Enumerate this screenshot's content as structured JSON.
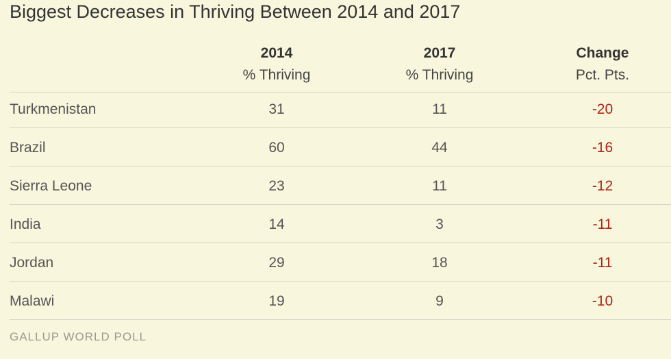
{
  "colors": {
    "background": "#f8f6dc",
    "text": "#333333",
    "negative": "#b22418",
    "rule": "#d9d6c4",
    "source": "#9b9b8c"
  },
  "chart_data": {
    "type": "table",
    "title": "Biggest Decreases in Thriving Between 2014 and 2017",
    "columns": [
      {
        "top": "",
        "sub": ""
      },
      {
        "top": "2014",
        "sub": "% Thriving"
      },
      {
        "top": "2017",
        "sub": "% Thriving"
      },
      {
        "top": "Change",
        "sub": "Pct. Pts."
      }
    ],
    "rows": [
      {
        "country": "Turkmenistan",
        "v2014": "31",
        "v2017": "11",
        "change": "-20"
      },
      {
        "country": "Brazil",
        "v2014": "60",
        "v2017": "44",
        "change": "-16"
      },
      {
        "country": "Sierra Leone",
        "v2014": "23",
        "v2017": "11",
        "change": "-12"
      },
      {
        "country": "India",
        "v2014": "14",
        "v2017": "3",
        "change": "-11"
      },
      {
        "country": "Jordan",
        "v2014": "29",
        "v2017": "18",
        "change": "-11"
      },
      {
        "country": "Malawi",
        "v2014": "19",
        "v2017": "9",
        "change": "-10"
      }
    ],
    "source": "GALLUP WORLD POLL"
  }
}
